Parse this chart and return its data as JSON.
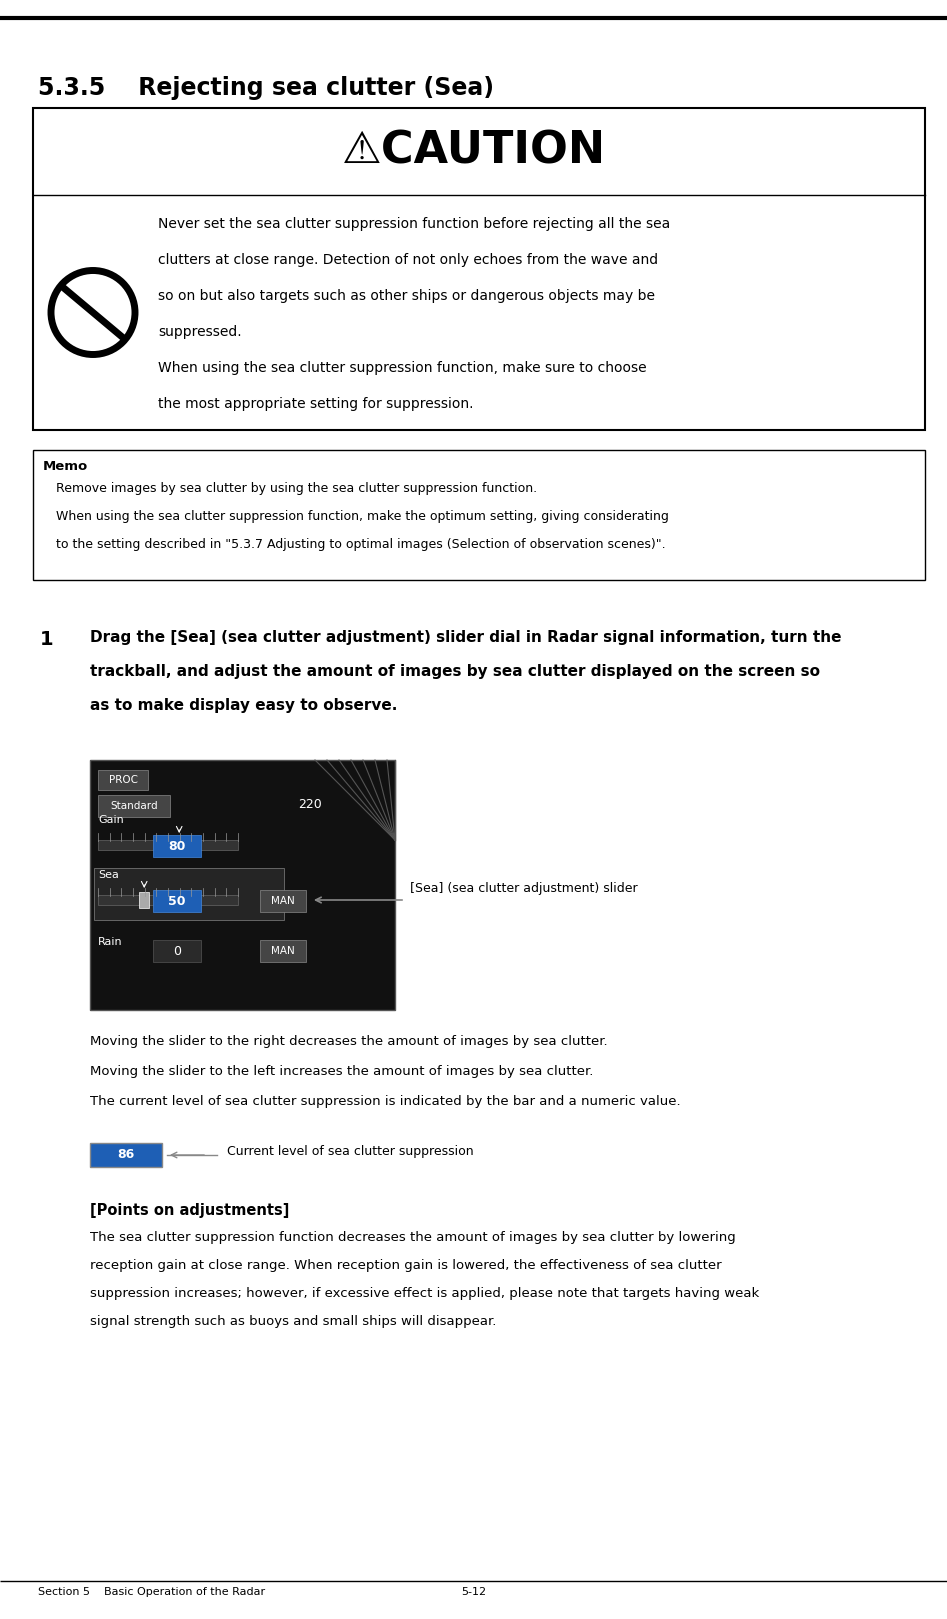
{
  "page_width": 9.47,
  "page_height": 16.19,
  "bg_color": "#ffffff",
  "section_header": "Section 5    Basic Operation of the Radar",
  "section_page": "5-12",
  "title": "5.3.5    Rejecting sea clutter (Sea)",
  "caution_text": "Never set the sea clutter suppression function before rejecting all the sea clutters at close range. Detection of not only echoes from the wave and\nso on but also targets such as other ships or dangerous objects may be suppressed.\nWhen using the sea clutter suppression function, make sure to choose\nthe most appropriate setting for suppression.",
  "memo_header": "Memo",
  "memo_line1": "Remove images by sea clutter by using the sea clutter suppression function.",
  "memo_line2": "When using the sea clutter suppression function, make the optimum setting, giving considerating",
  "memo_line3": "to the setting described in \"5.3.7 Adjusting to optimal images (Selection of observation scenes)\".",
  "step_num": "1",
  "step_text_line1": "Drag the [Sea] (sea clutter adjustment) slider dial in Radar signal information, turn the",
  "step_text_line2": "trackball, and adjust the amount of images by sea clutter displayed on the screen so",
  "step_text_line3": "as to make display easy to observe.",
  "bullet1": "Moving the slider to the right decreases the amount of images by sea clutter.",
  "bullet2": "Moving the slider to the left increases the amount of images by sea clutter.",
  "bullet3": "The current level of sea clutter suppression is indicated by the bar and a numeric value.",
  "sea_label": "[Sea] (sea clutter adjustment) slider",
  "curr_level_label": "Current level of sea clutter suppression",
  "points_header": "[Points on adjustments]",
  "points_line1": "The sea clutter suppression function decreases the amount of images by sea clutter by lowering",
  "points_line2": "reception gain at close range. When reception gain is lowered, the effectiveness of sea clutter",
  "points_line3": "suppression increases; however, if excessive effect is applied, please note that targets having weak",
  "points_line4": "signal strength such as buoys and small ships will disappear."
}
